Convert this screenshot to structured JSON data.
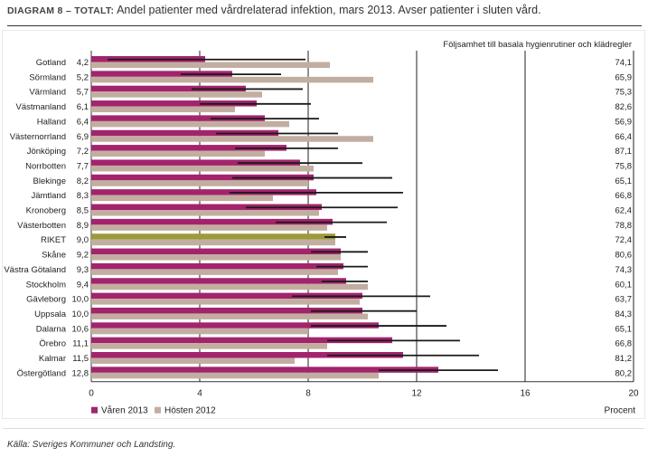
{
  "title": {
    "prefix": "DIAGRAM 8 – TOTALT:",
    "text": "Andel patienter med vårdrelaterad infektion, mars 2013. Avser patienter i sluten vård."
  },
  "source": "Källa: Sveriges Kommuner och Landsting.",
  "colors": {
    "spring": "#a3246d",
    "autumn": "#c2aea0",
    "riket": "#9c9a3a",
    "errorbar": "#1a1a1a",
    "grid": "#222222"
  },
  "chart_data": {
    "type": "bar",
    "orientation": "horizontal",
    "xlim": [
      0,
      20
    ],
    "xticks": [
      0,
      4,
      8,
      12,
      16,
      20
    ],
    "xlabel": "Procent",
    "grid": true,
    "legend": {
      "placement": "bottom-left",
      "entries": [
        "Våren 2013",
        "Hösten 2012"
      ]
    },
    "compliance_header": "Följsamhet till basala hygienrutiner och klädregler",
    "categories": [
      "Gotland",
      "Sörmland",
      "Värmland",
      "Västmanland",
      "Halland",
      "Västernorrland",
      "Jönköping",
      "Norrbotten",
      "Blekinge",
      "Jämtland",
      "Kronoberg",
      "Västerbotten",
      "RIKET",
      "Skåne",
      "Västra Götaland",
      "Stockholm",
      "Gävleborg",
      "Uppsala",
      "Dalarna",
      "Örebro",
      "Kalmar",
      "Östergötland"
    ],
    "value_labels": [
      "4,2",
      "5,2",
      "5,7",
      "6,1",
      "6,4",
      "6,9",
      "7,2",
      "7,7",
      "8,2",
      "8,3",
      "8,5",
      "8,9",
      "9,0",
      "9,2",
      "9,3",
      "9,4",
      "10,0",
      "10,0",
      "10,6",
      "11,1",
      "11,5",
      "12,8"
    ],
    "compliance": [
      "74,1",
      "65,9",
      "75,3",
      "82,6",
      "56,9",
      "66,4",
      "87,1",
      "75,8",
      "65,1",
      "66,8",
      "62,4",
      "78,8",
      "72,4",
      "80,6",
      "74,3",
      "60,1",
      "63,7",
      "84,3",
      "65,1",
      "66,8",
      "81,2",
      "80,2"
    ],
    "series": [
      {
        "name": "Våren 2013",
        "values": [
          4.2,
          5.2,
          5.7,
          6.1,
          6.4,
          6.9,
          7.2,
          7.7,
          8.2,
          8.3,
          8.5,
          8.9,
          9.0,
          9.2,
          9.3,
          9.4,
          10.0,
          10.0,
          10.6,
          11.1,
          11.5,
          12.8
        ],
        "ci_low": [
          0.6,
          3.3,
          3.7,
          4.0,
          4.4,
          4.6,
          5.3,
          5.4,
          5.2,
          5.1,
          5.7,
          6.8,
          8.6,
          8.1,
          8.3,
          8.5,
          7.4,
          8.1,
          8.1,
          8.7,
          8.7,
          10.6
        ],
        "ci_high": [
          7.9,
          7.0,
          7.8,
          8.1,
          8.4,
          9.1,
          9.1,
          10.0,
          11.1,
          11.5,
          11.3,
          10.9,
          9.4,
          10.2,
          10.2,
          10.2,
          12.5,
          12.0,
          13.1,
          13.6,
          14.3,
          15.0
        ]
      },
      {
        "name": "Hösten 2012",
        "values": [
          8.8,
          10.4,
          6.3,
          5.3,
          7.3,
          10.4,
          6.4,
          8.2,
          8.0,
          6.7,
          8.4,
          8.7,
          9.0,
          9.2,
          9.1,
          10.2,
          9.9,
          10.2,
          8.0,
          8.7,
          7.5,
          10.6
        ]
      }
    ]
  }
}
